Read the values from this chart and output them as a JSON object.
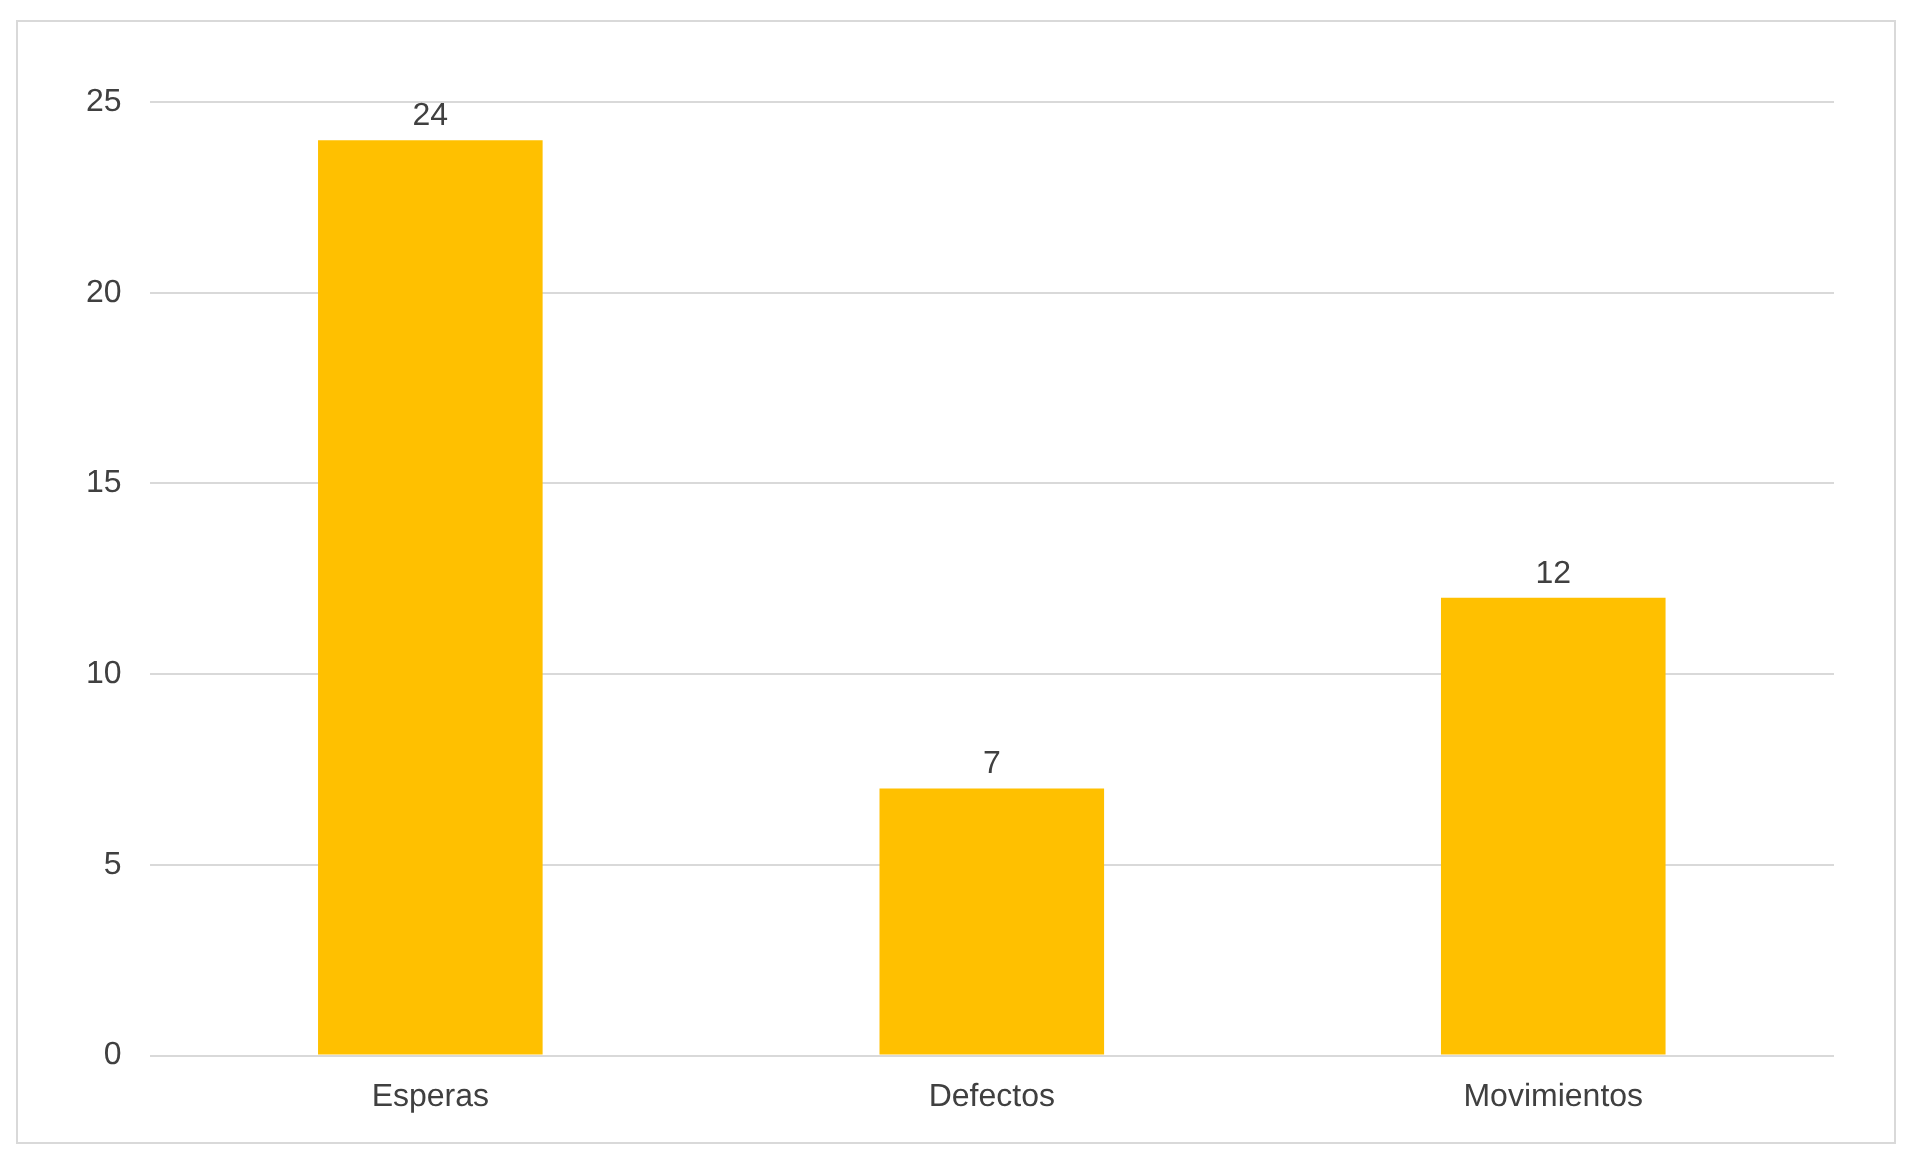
{
  "chart_data": {
    "type": "bar",
    "categories": [
      "Esperas",
      "Defectos",
      "Movimientos"
    ],
    "values": [
      24,
      7,
      12
    ],
    "color": "#ffc000",
    "ylim": [
      0,
      25
    ],
    "yticks": [
      0,
      5,
      10,
      15,
      20,
      25
    ],
    "grid": "y",
    "data_labels": true
  }
}
